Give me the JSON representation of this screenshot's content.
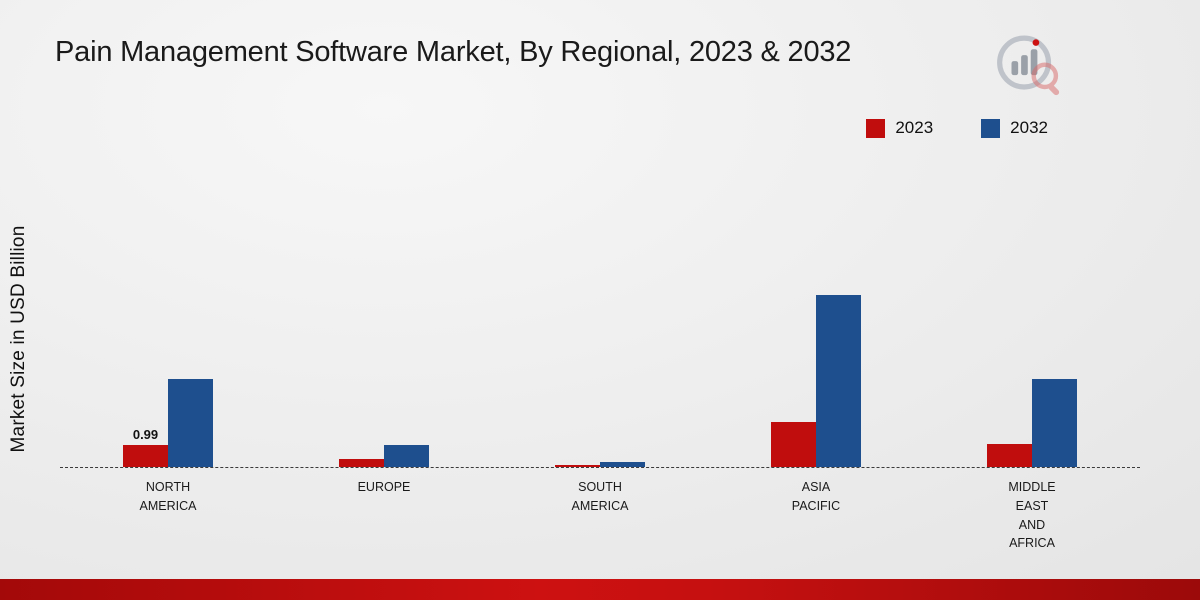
{
  "title": "Pain Management Software Market, By Regional, 2023 & 2032",
  "ylabel": "Market Size in USD Billion",
  "colors": {
    "series_2023": "#c00d0d",
    "series_2032": "#1e4f8e",
    "footer_band": "#b30b0b"
  },
  "chart_data": {
    "type": "bar",
    "title": "Pain Management Software Market, By Regional, 2023 & 2032",
    "xlabel": "",
    "ylabel": "Market Size in USD Billion",
    "categories": [
      "NORTH AMERICA",
      "EUROPE",
      "SOUTH AMERICA",
      "ASIA PACIFIC",
      "MIDDLE EAST AND AFRICA"
    ],
    "series": [
      {
        "name": "2023",
        "color": "#c00d0d",
        "values": [
          0.99,
          0.35,
          0.08,
          2.05,
          1.05
        ]
      },
      {
        "name": "2032",
        "color": "#1e4f8e",
        "values": [
          4.0,
          0.99,
          0.22,
          7.8,
          4.0
        ]
      }
    ],
    "annotations": [
      {
        "series": "2023",
        "category": "NORTH AMERICA",
        "text": "0.99"
      }
    ],
    "ylim": [
      0,
      8.2
    ],
    "grid": false,
    "legend_position": "top-right",
    "baseline_style": "dashed"
  }
}
